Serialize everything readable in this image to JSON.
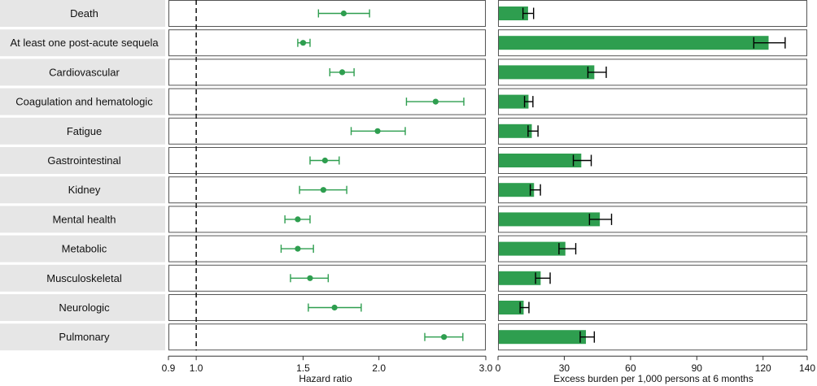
{
  "colors": {
    "accent": "#2e9e4f",
    "label_bg": "#e6e6e6",
    "panel_border": "#555555",
    "error_bar_bar_panel": "#000000"
  },
  "chart_data": [
    {
      "type": "scatter",
      "subtype": "forest-plot",
      "categories": [
        "Death",
        "At least one post-acute sequela",
        "Cardiovascular",
        "Coagulation and hematologic",
        "Fatigue",
        "Gastrointestinal",
        "Kidney",
        "Mental health",
        "Metabolic",
        "Musculoskeletal",
        "Neurologic",
        "Pulmonary"
      ],
      "estimate": [
        1.75,
        1.5,
        1.74,
        2.48,
        1.99,
        1.63,
        1.62,
        1.47,
        1.47,
        1.54,
        1.69,
        2.56
      ],
      "ci_low": [
        1.59,
        1.47,
        1.66,
        2.22,
        1.8,
        1.54,
        1.48,
        1.4,
        1.38,
        1.43,
        1.53,
        2.38
      ],
      "ci_high": [
        1.93,
        1.54,
        1.82,
        2.76,
        2.21,
        1.72,
        1.77,
        1.54,
        1.56,
        1.65,
        1.87,
        2.75
      ],
      "xlabel": "Hazard ratio",
      "x_scale": "log",
      "xlim": [
        0.9,
        3.0
      ],
      "xticks": [
        "0.9",
        "1.0",
        "1.5",
        "2.0",
        "3.0"
      ],
      "reference_line": 1.0,
      "color": "#2e9e4f"
    },
    {
      "type": "bar",
      "orientation": "horizontal",
      "categories": [
        "Death",
        "At least one post-acute sequela",
        "Cardiovascular",
        "Coagulation and hematologic",
        "Fatigue",
        "Gastrointestinal",
        "Kidney",
        "Mental health",
        "Metabolic",
        "Musculoskeletal",
        "Neurologic",
        "Pulmonary"
      ],
      "values": [
        13.6,
        122.5,
        43.6,
        13.8,
        15.3,
        37.7,
        16.3,
        46.1,
        30.5,
        19.3,
        11.6,
        39.8
      ],
      "ci_low": [
        11.3,
        115.8,
        40.7,
        12.0,
        13.6,
        34.1,
        14.6,
        41.4,
        27.6,
        17.0,
        10.0,
        37.2
      ],
      "ci_high": [
        16.1,
        130.0,
        49.0,
        15.8,
        18.1,
        42.2,
        19.2,
        51.4,
        35.2,
        23.6,
        14.0,
        43.6
      ],
      "xlabel": "Excess burden per 1,000 persons at 6 months",
      "xlim": [
        0,
        140
      ],
      "xticks": [
        "0",
        "30",
        "60",
        "90",
        "120",
        "140"
      ],
      "color": "#2e9e4f"
    }
  ]
}
